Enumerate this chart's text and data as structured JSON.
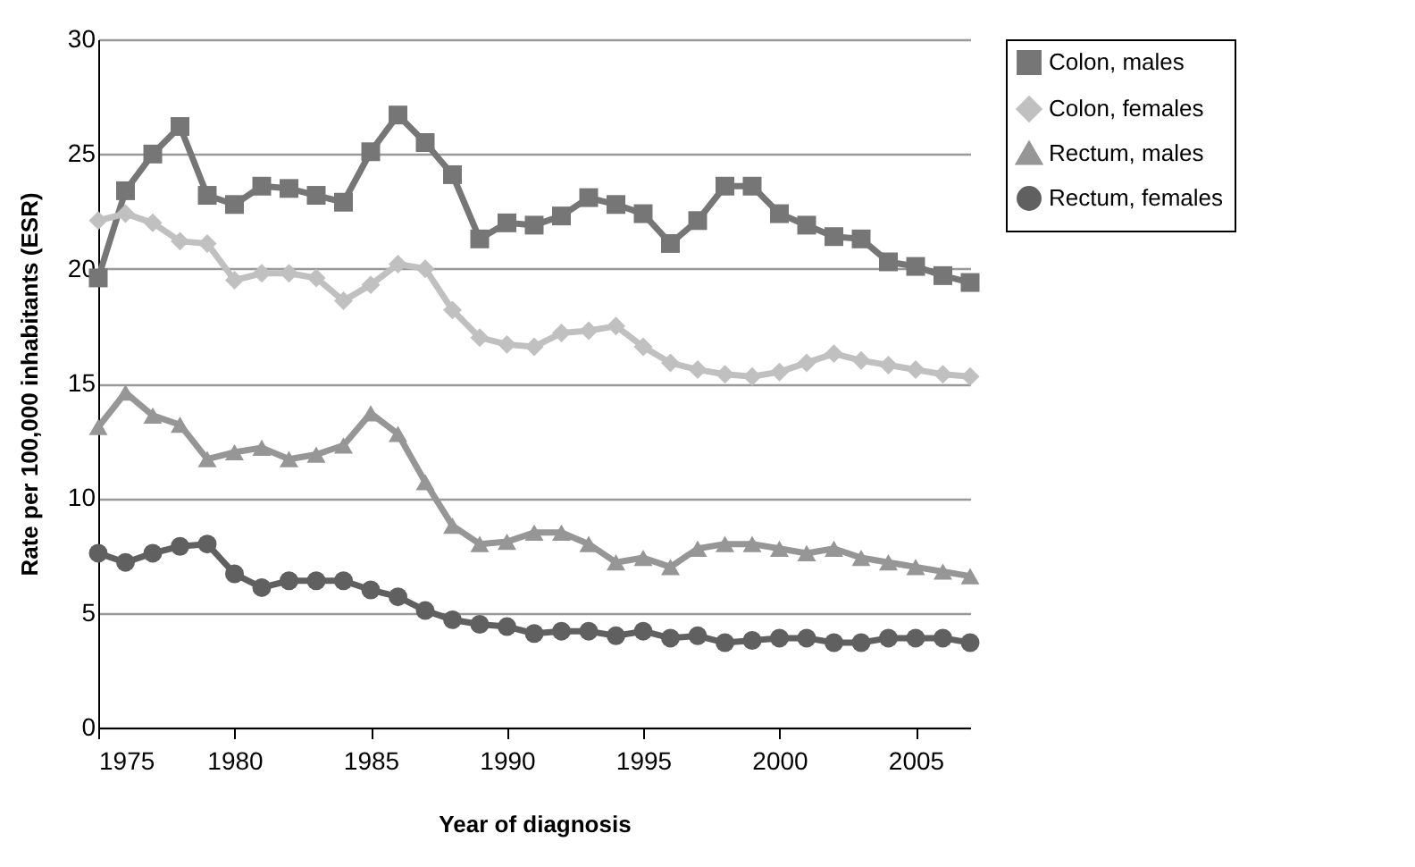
{
  "chart_data": {
    "type": "line",
    "xlabel": "Year of diagnosis",
    "ylabel": "Rate per 100,000 inhabitants (ESR)",
    "x": [
      1975,
      1976,
      1977,
      1978,
      1979,
      1980,
      1981,
      1982,
      1983,
      1984,
      1985,
      1986,
      1987,
      1988,
      1989,
      1990,
      1991,
      1992,
      1993,
      1994,
      1995,
      1996,
      1997,
      1998,
      1999,
      2000,
      2001,
      2002,
      2003,
      2004,
      2005,
      2006,
      2007
    ],
    "series": [
      {
        "name": "Colon, males",
        "color": "#767676",
        "marker": "square",
        "values": [
          19.6,
          23.4,
          25.0,
          26.2,
          23.2,
          22.8,
          23.6,
          23.5,
          23.2,
          22.9,
          25.1,
          26.7,
          25.5,
          24.1,
          21.3,
          22.0,
          21.9,
          22.3,
          23.1,
          22.8,
          22.4,
          21.1,
          22.1,
          23.6,
          23.6,
          22.4,
          21.9,
          21.4,
          21.3,
          20.3,
          20.1,
          19.7,
          19.4
        ]
      },
      {
        "name": "Colon, females",
        "color": "#c0c0c0",
        "marker": "diamond",
        "values": [
          22.1,
          22.4,
          22.0,
          21.2,
          21.1,
          19.5,
          19.8,
          19.8,
          19.6,
          18.6,
          19.3,
          20.2,
          20.0,
          18.2,
          17.0,
          16.7,
          16.6,
          17.2,
          17.3,
          17.5,
          16.6,
          15.9,
          15.6,
          15.4,
          15.3,
          15.5,
          15.9,
          16.3,
          16.0,
          15.8,
          15.6,
          15.4,
          15.3
        ]
      },
      {
        "name": "Rectum, males",
        "color": "#969696",
        "marker": "triangle",
        "values": [
          13.1,
          14.6,
          13.6,
          13.2,
          11.7,
          12.0,
          12.2,
          11.7,
          11.9,
          12.3,
          13.7,
          12.8,
          10.7,
          8.8,
          8.0,
          8.1,
          8.5,
          8.5,
          8.0,
          7.2,
          7.4,
          7.0,
          7.8,
          8.0,
          8.0,
          7.8,
          7.6,
          7.8,
          7.4,
          7.2,
          7.0,
          6.8,
          6.6
        ]
      },
      {
        "name": "Rectum, females",
        "color": "#606060",
        "marker": "circle",
        "values": [
          7.6,
          7.2,
          7.6,
          7.9,
          8.0,
          6.7,
          6.1,
          6.4,
          6.4,
          6.4,
          6.0,
          5.7,
          5.1,
          4.7,
          4.5,
          4.4,
          4.1,
          4.2,
          4.2,
          4.0,
          4.2,
          3.9,
          4.0,
          3.7,
          3.8,
          3.9,
          3.9,
          3.7,
          3.7,
          3.9,
          3.9,
          3.9,
          3.7
        ]
      }
    ],
    "xlim": [
      1975,
      2007
    ],
    "xticks": [
      1975,
      1980,
      1985,
      1990,
      1995,
      2000,
      2005
    ],
    "ylim": [
      0,
      30
    ],
    "yticks": [
      0,
      5,
      10,
      15,
      20,
      25,
      30
    ],
    "grid": "y",
    "legend": "right",
    "line_style": "solid"
  }
}
